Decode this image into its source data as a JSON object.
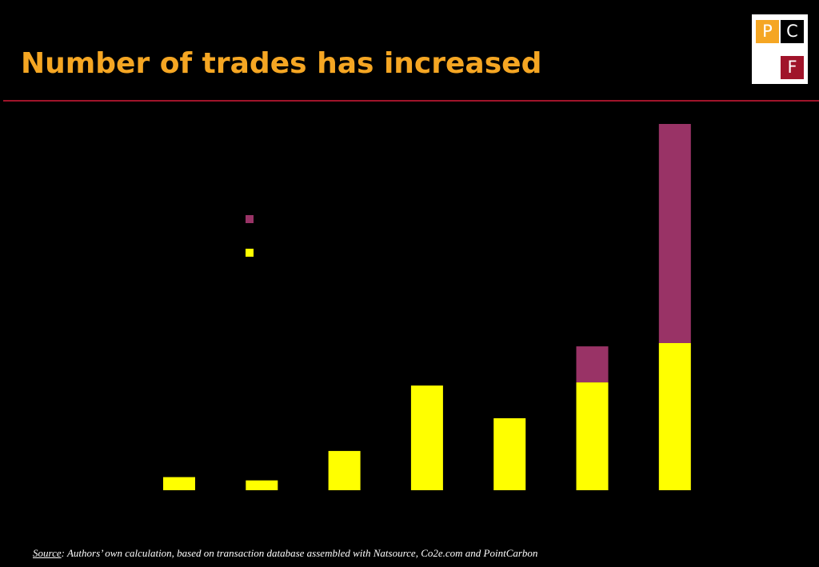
{
  "header": {
    "title": "Number of trades has increased"
  },
  "logo": {
    "letters": [
      "P",
      "C",
      "F"
    ]
  },
  "chart_data": {
    "type": "bar",
    "stacked": true,
    "categories": [
      "",
      "",
      "",
      "",
      "",
      "",
      ""
    ],
    "series": [
      {
        "color": "#ffff00",
        "values": [
          4,
          3,
          12,
          32,
          22,
          33,
          45
        ]
      },
      {
        "color": "#993366",
        "values": [
          0,
          0,
          0,
          0,
          0,
          11,
          67
        ]
      }
    ],
    "title": "",
    "xlabel": "",
    "ylabel": "",
    "ylim": [
      0,
      112
    ],
    "grid": false,
    "legend": "upper-left"
  },
  "footer": {
    "source_label": "Source",
    "source_text": ": Authors’ own calculation, based on transaction database assembled with Natsource, Co2e.com and PointCarbon"
  }
}
